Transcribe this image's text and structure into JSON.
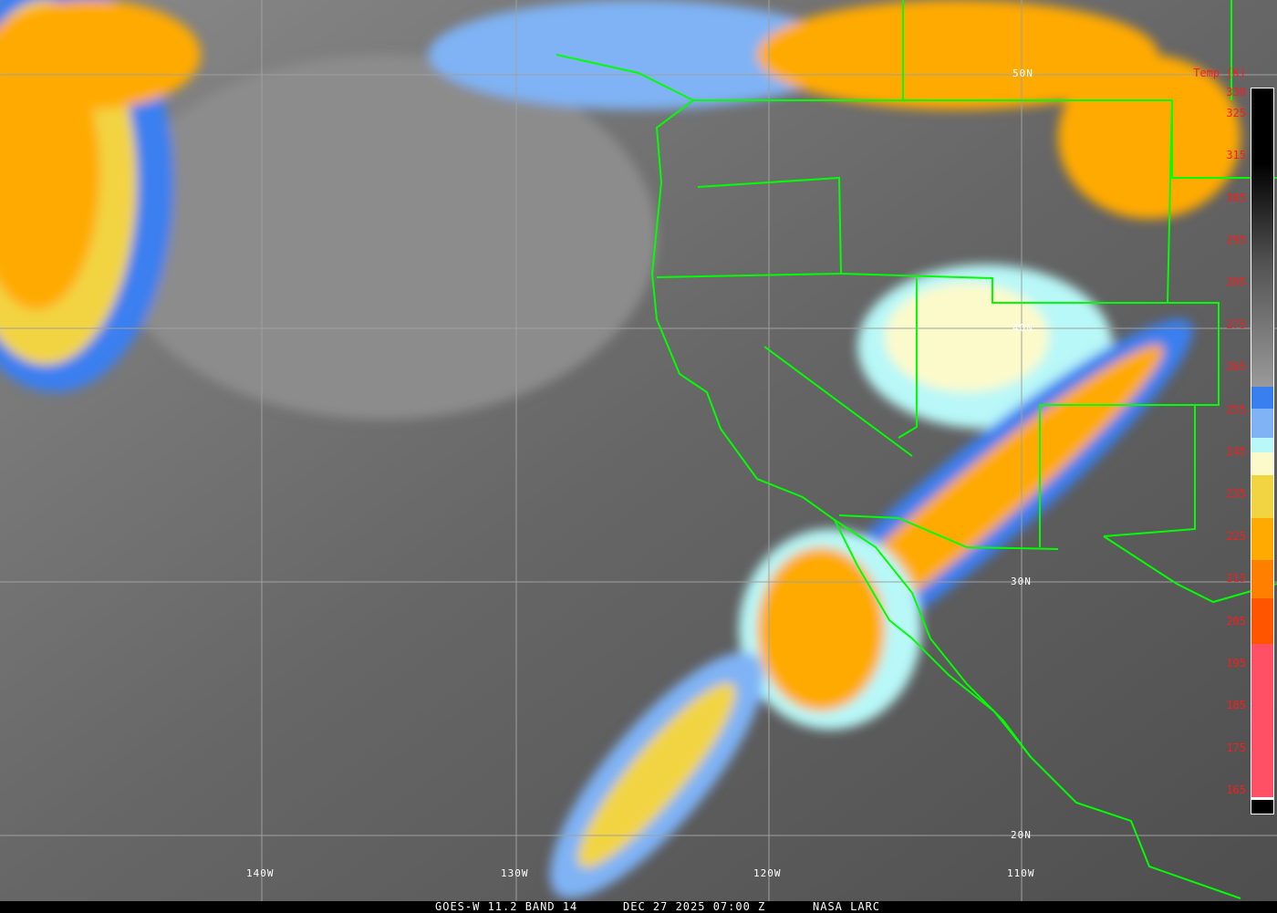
{
  "title_bar": {
    "satellite": "GOES-W 11.2 BAND 14",
    "datetime": "DEC 27 2025 07:00 Z",
    "source": "NASA LARC"
  },
  "grid_labels": {
    "latitudes": [
      "50N",
      "40N",
      "30N",
      "20N"
    ],
    "longitudes": [
      "140W",
      "130W",
      "120W",
      "110W"
    ]
  },
  "legend": {
    "title": "Temp [K]",
    "ticks": [
      "330",
      "325",
      "315",
      "305",
      "295",
      "285",
      "275",
      "265",
      "255",
      "245",
      "235",
      "225",
      "215",
      "205",
      "195",
      "185",
      "175",
      "165"
    ],
    "colors": {
      "warm_black": "#000000",
      "gray": "#9a9a9a",
      "blue": "#3a7ff0",
      "light_blue": "#7fb3f5",
      "pale_cyan": "#b8f8f8",
      "cream": "#fcfacb",
      "yellow": "#f2d443",
      "orange": "#ffaa00",
      "dark_orange": "#ff8000",
      "red_orange": "#ff5500",
      "pink": "#ff5066"
    }
  },
  "map_colors": {
    "coastline": "#00ff00",
    "gridline": "#a0a0a0"
  }
}
